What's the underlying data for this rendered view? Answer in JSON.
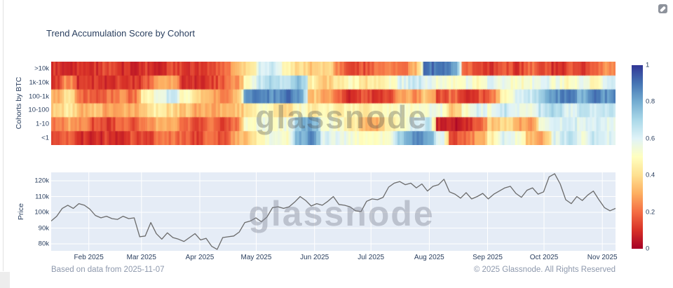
{
  "page": {
    "title": "Trend Accumulation Score by Cohort",
    "watermark": "glassnode",
    "footer_left": "Based on data from 2025-11-07",
    "footer_right": "© 2025 Glassnode. All Rights Reserved"
  },
  "icons": {
    "top_right": "camera-snapshot-icon"
  },
  "colors": {
    "title_text": "#2a3f5f",
    "tick_text": "#2a3f5f",
    "footer_text": "#8e99ad",
    "price_plot_bg": "#e5ecf6",
    "gridline": "#ffffff",
    "price_line": "#6b6b6b",
    "colormap_red_to_blue": [
      "#a50026",
      "#d73027",
      "#f46d43",
      "#fdae61",
      "#fee090",
      "#ffffbf",
      "#e0f3f8",
      "#abd9e9",
      "#74add1",
      "#4575b4",
      "#313695"
    ]
  },
  "chart_data": [
    {
      "type": "heatmap",
      "title": "Trend Accumulation Score by Cohort",
      "ylabel": "Cohorts by BTC",
      "x_axis_note": "shared time axis with price chart, Feb 2025 - Nov 2025",
      "zlim": [
        0,
        1
      ],
      "colorscale": "RdYlBu (0 = dark red, 1 = dark blue)",
      "colorbar_ticks": [
        {
          "label": "1",
          "value": 1
        },
        {
          "label": "0.8",
          "value": 0.8
        },
        {
          "label": "0.6",
          "value": 0.6
        },
        {
          "label": "0.4",
          "value": 0.4
        },
        {
          "label": "0.2",
          "value": 0.2
        },
        {
          "label": "0",
          "value": 0
        }
      ],
      "categories": [
        ">10k",
        "1k-10k",
        "100-1k",
        "10-100",
        "1-10",
        "<1"
      ],
      "series": [
        {
          "name": ">10k",
          "values": [
            0.1,
            0.08,
            0.12,
            0.1,
            0.15,
            0.1,
            0.08,
            0.12,
            0.1,
            0.15,
            0.12,
            0.1,
            0.15,
            0.2,
            0.3,
            0.4,
            0.6,
            0.65,
            0.45,
            0.4,
            0.35,
            0.4,
            0.25,
            0.1,
            0.15,
            0.2,
            0.25,
            0.2,
            0.3,
            0.9,
            0.9,
            0.85,
            0.2,
            0.15,
            0.1,
            0.15,
            0.12,
            0.2,
            0.15,
            0.1,
            0.15,
            0.12,
            0.18,
            0.25
          ]
        },
        {
          "name": "1k-10k",
          "values": [
            0.12,
            0.25,
            0.1,
            0.12,
            0.1,
            0.15,
            0.1,
            0.15,
            0.3,
            0.28,
            0.12,
            0.1,
            0.12,
            0.18,
            0.25,
            0.5,
            0.65,
            0.7,
            0.65,
            0.75,
            0.45,
            0.35,
            0.45,
            0.5,
            0.4,
            0.45,
            0.5,
            0.6,
            0.65,
            0.6,
            0.55,
            0.5,
            0.55,
            0.5,
            0.6,
            0.55,
            0.5,
            0.55,
            0.6,
            0.55,
            0.5,
            0.55,
            0.45,
            0.6
          ]
        },
        {
          "name": "100-1k",
          "values": [
            0.3,
            0.4,
            0.2,
            0.15,
            0.2,
            0.25,
            0.2,
            0.45,
            0.55,
            0.65,
            0.5,
            0.4,
            0.3,
            0.25,
            0.3,
            0.85,
            0.9,
            0.85,
            0.9,
            0.85,
            0.35,
            0.3,
            0.2,
            0.1,
            0.15,
            0.1,
            0.15,
            0.3,
            0.25,
            0.35,
            0.15,
            0.2,
            0.1,
            0.15,
            0.2,
            0.5,
            0.6,
            0.65,
            0.75,
            0.85,
            0.9,
            0.8,
            0.88,
            0.85
          ]
        },
        {
          "name": "10-100",
          "values": [
            0.35,
            0.45,
            0.3,
            0.35,
            0.28,
            0.32,
            0.3,
            0.38,
            0.45,
            0.4,
            0.35,
            0.3,
            0.28,
            0.32,
            0.35,
            0.38,
            0.5,
            0.45,
            0.4,
            0.5,
            0.45,
            0.5,
            0.45,
            0.5,
            0.4,
            0.45,
            0.5,
            0.55,
            0.5,
            0.55,
            0.55,
            0.35,
            0.5,
            0.6,
            0.55,
            0.65,
            0.6,
            0.55,
            0.65,
            0.7,
            0.6,
            0.65,
            0.6,
            0.65
          ]
        },
        {
          "name": "1-10",
          "values": [
            0.2,
            0.3,
            0.25,
            0.15,
            0.12,
            0.2,
            0.15,
            0.25,
            0.3,
            0.28,
            0.2,
            0.15,
            0.2,
            0.15,
            0.22,
            0.5,
            0.55,
            0.5,
            0.55,
            0.75,
            0.8,
            0.55,
            0.5,
            0.45,
            0.35,
            0.3,
            0.45,
            0.5,
            0.6,
            0.65,
            0.08,
            0.05,
            0.1,
            0.2,
            0.35,
            0.4,
            0.3,
            0.25,
            0.55,
            0.6,
            0.65,
            0.6,
            0.62,
            0.6
          ]
        },
        {
          "name": "<1",
          "values": [
            0.12,
            0.18,
            0.1,
            0.08,
            0.12,
            0.1,
            0.15,
            0.12,
            0.2,
            0.22,
            0.18,
            0.12,
            0.25,
            0.15,
            0.3,
            0.35,
            0.5,
            0.55,
            0.5,
            0.8,
            0.85,
            0.6,
            0.6,
            0.55,
            0.5,
            0.5,
            0.55,
            0.75,
            0.85,
            0.8,
            0.6,
            0.15,
            0.2,
            0.3,
            0.45,
            0.6,
            0.55,
            0.35,
            0.3,
            0.6,
            0.65,
            0.55,
            0.65,
            0.6
          ]
        }
      ]
    },
    {
      "type": "line",
      "ylabel": "Price",
      "x_span_days": 300,
      "x_tick_labels": [
        {
          "label": "Feb 2025",
          "day": 20
        },
        {
          "label": "Mar 2025",
          "day": 48
        },
        {
          "label": "Apr 2025",
          "day": 79
        },
        {
          "label": "May 2025",
          "day": 109
        },
        {
          "label": "Jun 2025",
          "day": 140
        },
        {
          "label": "Jul 2025",
          "day": 170
        },
        {
          "label": "Aug 2025",
          "day": 201
        },
        {
          "label": "Sep 2025",
          "day": 232
        },
        {
          "label": "Oct 2025",
          "day": 262
        },
        {
          "label": "Nov 2025",
          "day": 293
        }
      ],
      "y_tick_labels": [
        {
          "label": "120k",
          "value": 120
        },
        {
          "label": "110k",
          "value": 110
        },
        {
          "label": "100k",
          "value": 100
        },
        {
          "label": "90k",
          "value": 90
        },
        {
          "label": "80k",
          "value": 80
        }
      ],
      "ylim_thoususd": [
        75.6,
        125.3
      ],
      "values_usd_thousands": [
        94.5,
        97.5,
        102.5,
        104.5,
        102.5,
        105.5,
        104.5,
        102,
        98,
        96.5,
        97.5,
        96,
        95.5,
        97.5,
        96,
        96.5,
        84.5,
        85,
        93.5,
        86.5,
        83,
        87,
        84,
        83,
        81.5,
        84,
        86.5,
        82.5,
        83.5,
        78.5,
        76.5,
        84,
        84.5,
        85,
        87.5,
        93.5,
        94.5,
        96.5,
        94,
        97,
        103,
        103.5,
        102.5,
        103.5,
        106.5,
        110,
        107.5,
        104,
        105.5,
        104.5,
        107,
        110,
        105,
        104.5,
        103.5,
        101,
        100.5,
        107,
        108.5,
        108,
        109.5,
        116,
        118.5,
        119.5,
        117.5,
        118.5,
        115.5,
        118,
        113.5,
        116.5,
        117.5,
        121,
        113,
        111.5,
        109,
        112.5,
        108.5,
        110,
        112,
        108.5,
        111.5,
        113.5,
        115.5,
        116.5,
        112,
        109.5,
        114,
        115.5,
        111.5,
        113,
        122.5,
        124.5,
        118,
        108,
        105.5,
        110,
        107.5,
        111,
        113.5,
        108,
        103,
        101,
        102.5
      ]
    }
  ]
}
